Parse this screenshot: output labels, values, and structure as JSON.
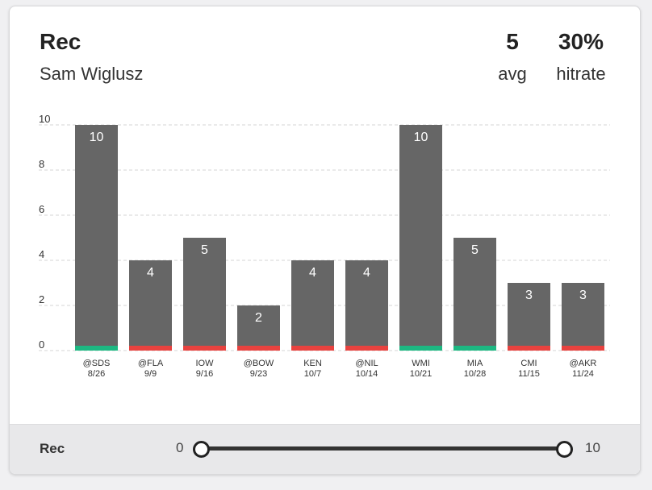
{
  "header": {
    "title": "Rec",
    "player": "Sam Wiglusz",
    "avg_value": "5",
    "avg_label": "avg",
    "hitrate_value": "30%",
    "hitrate_label": "hitrate"
  },
  "footer": {
    "label": "Rec",
    "range_min": "0",
    "range_max": "10",
    "range_low_value": 0,
    "range_high_value": 10
  },
  "colors": {
    "bar": "#666666",
    "hit": "#1db882",
    "miss": "#e8423f"
  },
  "chart_data": {
    "type": "bar",
    "categories": [
      "@SDS",
      "@FLA",
      "IOW",
      "@BOW",
      "KEN",
      "@NIL",
      "WMI",
      "MIA",
      "CMI",
      "@AKR"
    ],
    "dates": [
      "8/26",
      "9/9",
      "9/16",
      "9/23",
      "10/7",
      "10/14",
      "10/21",
      "10/28",
      "11/15",
      "11/24"
    ],
    "values": [
      10,
      4,
      5,
      2,
      4,
      4,
      10,
      5,
      3,
      3
    ],
    "hit": [
      true,
      false,
      false,
      false,
      false,
      false,
      true,
      true,
      false,
      false
    ],
    "ylim": [
      0,
      10
    ],
    "yticks": [
      0,
      2,
      4,
      6,
      8,
      10
    ],
    "grid": true
  }
}
